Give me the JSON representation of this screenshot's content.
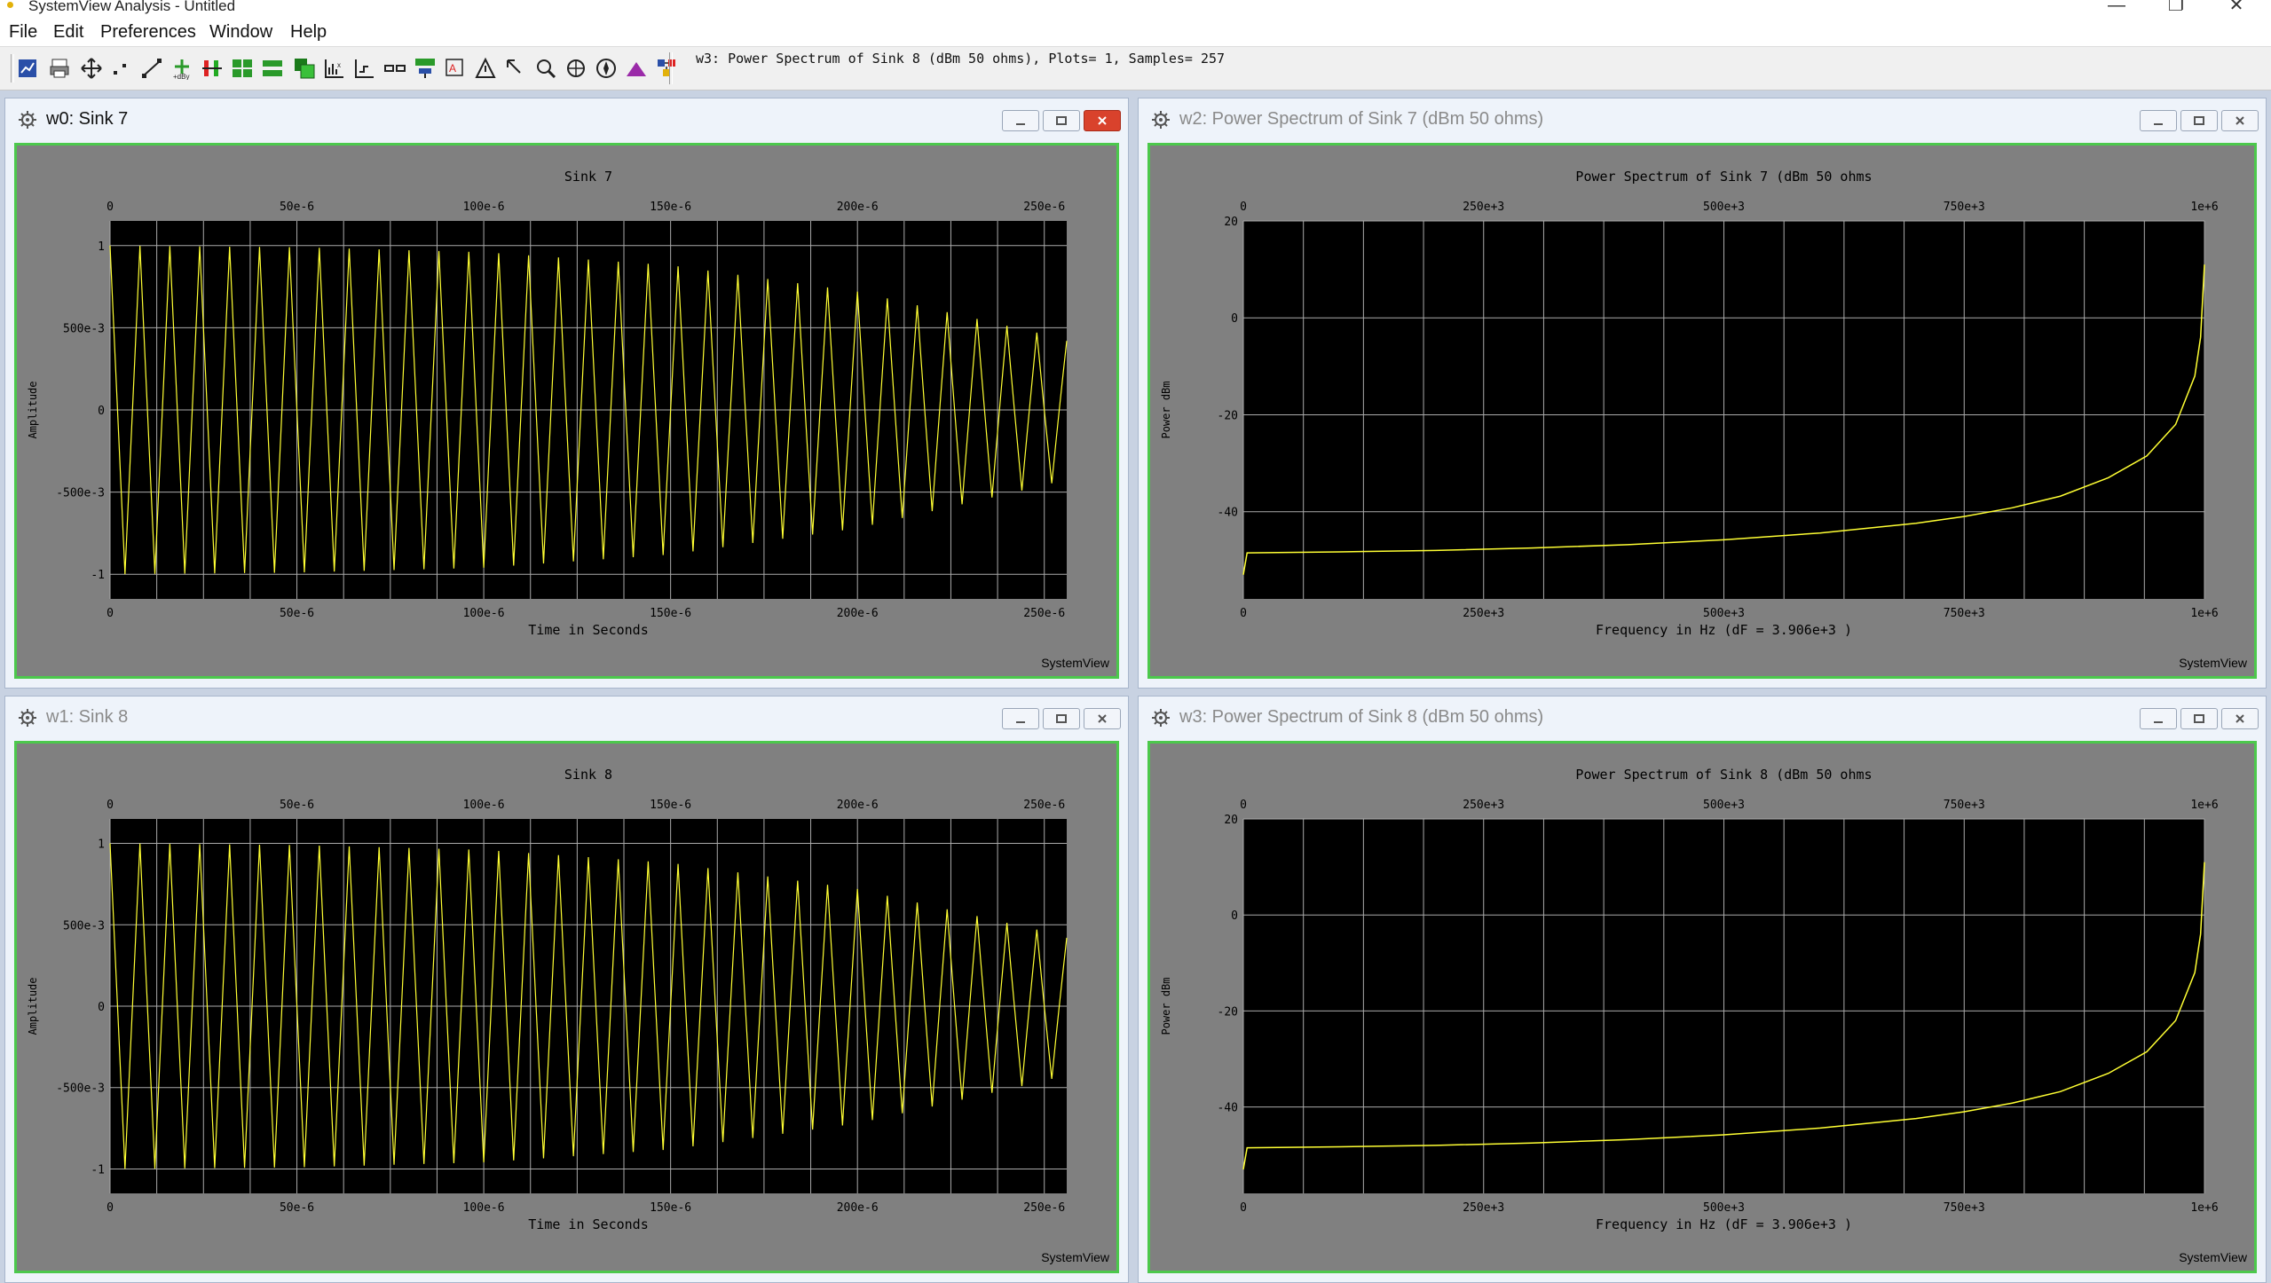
{
  "app": {
    "title": "SystemView Analysis - Untitled"
  },
  "menu": [
    "File",
    "Edit",
    "Preferences",
    "Window",
    "Help"
  ],
  "toolbar": {
    "status_text": "w3: Power Spectrum of Sink 8 (dBm 50 ohms), Plots= 1, Samples= 257",
    "icons": [
      "chart-icon",
      "print-icon",
      "pan-icon",
      "points-icon",
      "line-style-icon",
      "add-plot-icon",
      "signal-bars-icon",
      "tile-icon",
      "tile-horizontal-icon",
      "overlay-icon",
      "stack-icon",
      "axis-icon",
      "scale-icon",
      "combine-icon",
      "network-icon",
      "annotate-icon",
      "triangle-icon",
      "cursor-icon",
      "zoom-icon",
      "compass-icon",
      "mountain-icon",
      "properties-icon"
    ]
  },
  "windows": [
    {
      "id": "w0",
      "title": "w0: Sink 7",
      "active": true,
      "chart_data": {
        "type": "line",
        "title": "Sink 7",
        "xlabel": "Time in Seconds",
        "ylabel": "Amplitude",
        "xlim": [
          0,
          0.000256
        ],
        "ylim": [
          -1.15,
          1.15
        ],
        "x_ticks": [
          "0",
          "50e-6",
          "100e-6",
          "150e-6",
          "200e-6",
          "250e-6"
        ],
        "y_ticks": [
          "1",
          "500e-3",
          "0",
          "-500e-3",
          "-1"
        ],
        "grid": true,
        "series": [
          {
            "samples": 257,
            "envelope_x": [
              0,
              5e-05,
              0.0001,
              0.00015,
              0.0002,
              0.00025,
              0.000256
            ],
            "envelope_y": [
              1.0,
              0.99,
              0.96,
              0.88,
              0.72,
              0.46,
              0.42
            ]
          }
        ],
        "brand": "SystemView",
        "color": "#ffff33"
      }
    },
    {
      "id": "w2",
      "title": "w2: Power Spectrum of Sink 7 (dBm 50 ohms)",
      "active": false,
      "chart_data": {
        "type": "line",
        "title": "Power Spectrum of Sink 7 (dBm 50 ohms",
        "xlabel": "Frequency in Hz (dF = 3.906e+3 )",
        "ylabel": "Power dBm",
        "xlim": [
          0,
          1000000
        ],
        "ylim": [
          -58,
          20
        ],
        "x_ticks": [
          "0",
          "250e+3",
          "500e+3",
          "750e+3",
          "1e+6"
        ],
        "y_ticks": [
          "20",
          "0",
          "-20",
          "-40"
        ],
        "grid": true,
        "series": [
          {
            "x": [
              0,
              3906,
              100000,
              200000,
              300000,
              400000,
              500000,
              600000,
              700000,
              750000,
              800000,
              850000,
              900000,
              940000,
              970000,
              990000,
              996000,
              1000000
            ],
            "y": [
              -53,
              -48.5,
              -48.3,
              -48,
              -47.5,
              -46.8,
              -45.8,
              -44.4,
              -42.4,
              -41,
              -39.2,
              -36.8,
              -33,
              -28.5,
              -22,
              -12,
              -4,
              11
            ]
          }
        ],
        "brand": "SystemView",
        "color": "#ffff33"
      }
    },
    {
      "id": "w1",
      "title": "w1: Sink 8",
      "active": false,
      "chart_data": {
        "type": "line",
        "title": "Sink 8",
        "xlabel": "Time in Seconds",
        "ylabel": "Amplitude",
        "xlim": [
          0,
          0.000256
        ],
        "ylim": [
          -1.15,
          1.15
        ],
        "x_ticks": [
          "0",
          "50e-6",
          "100e-6",
          "150e-6",
          "200e-6",
          "250e-6"
        ],
        "y_ticks": [
          "1",
          "500e-3",
          "0",
          "-500e-3",
          "-1"
        ],
        "grid": true,
        "series": [
          {
            "samples": 257,
            "envelope_x": [
              0,
              5e-05,
              0.0001,
              0.00015,
              0.0002,
              0.00025,
              0.000256
            ],
            "envelope_y": [
              1.0,
              0.99,
              0.96,
              0.88,
              0.72,
              0.46,
              0.42
            ]
          }
        ],
        "brand": "SystemView",
        "color": "#ffff33"
      }
    },
    {
      "id": "w3",
      "title": "w3: Power Spectrum of Sink 8 (dBm 50 ohms)",
      "active": false,
      "chart_data": {
        "type": "line",
        "title": "Power Spectrum of Sink 8 (dBm 50 ohms",
        "xlabel": "Frequency in Hz (dF = 3.906e+3 )",
        "ylabel": "Power dBm",
        "xlim": [
          0,
          1000000
        ],
        "ylim": [
          -58,
          20
        ],
        "x_ticks": [
          "0",
          "250e+3",
          "500e+3",
          "750e+3",
          "1e+6"
        ],
        "y_ticks": [
          "20",
          "0",
          "-20",
          "-40"
        ],
        "grid": true,
        "series": [
          {
            "x": [
              0,
              3906,
              100000,
              200000,
              300000,
              400000,
              500000,
              600000,
              700000,
              750000,
              800000,
              850000,
              900000,
              940000,
              970000,
              990000,
              996000,
              1000000
            ],
            "y": [
              -53,
              -48.5,
              -48.3,
              -48,
              -47.5,
              -46.8,
              -45.8,
              -44.4,
              -42.4,
              -41,
              -39.2,
              -36.8,
              -33,
              -28.5,
              -22,
              -12,
              -4,
              11
            ]
          }
        ],
        "brand": "SystemView",
        "color": "#ffff33"
      }
    }
  ]
}
